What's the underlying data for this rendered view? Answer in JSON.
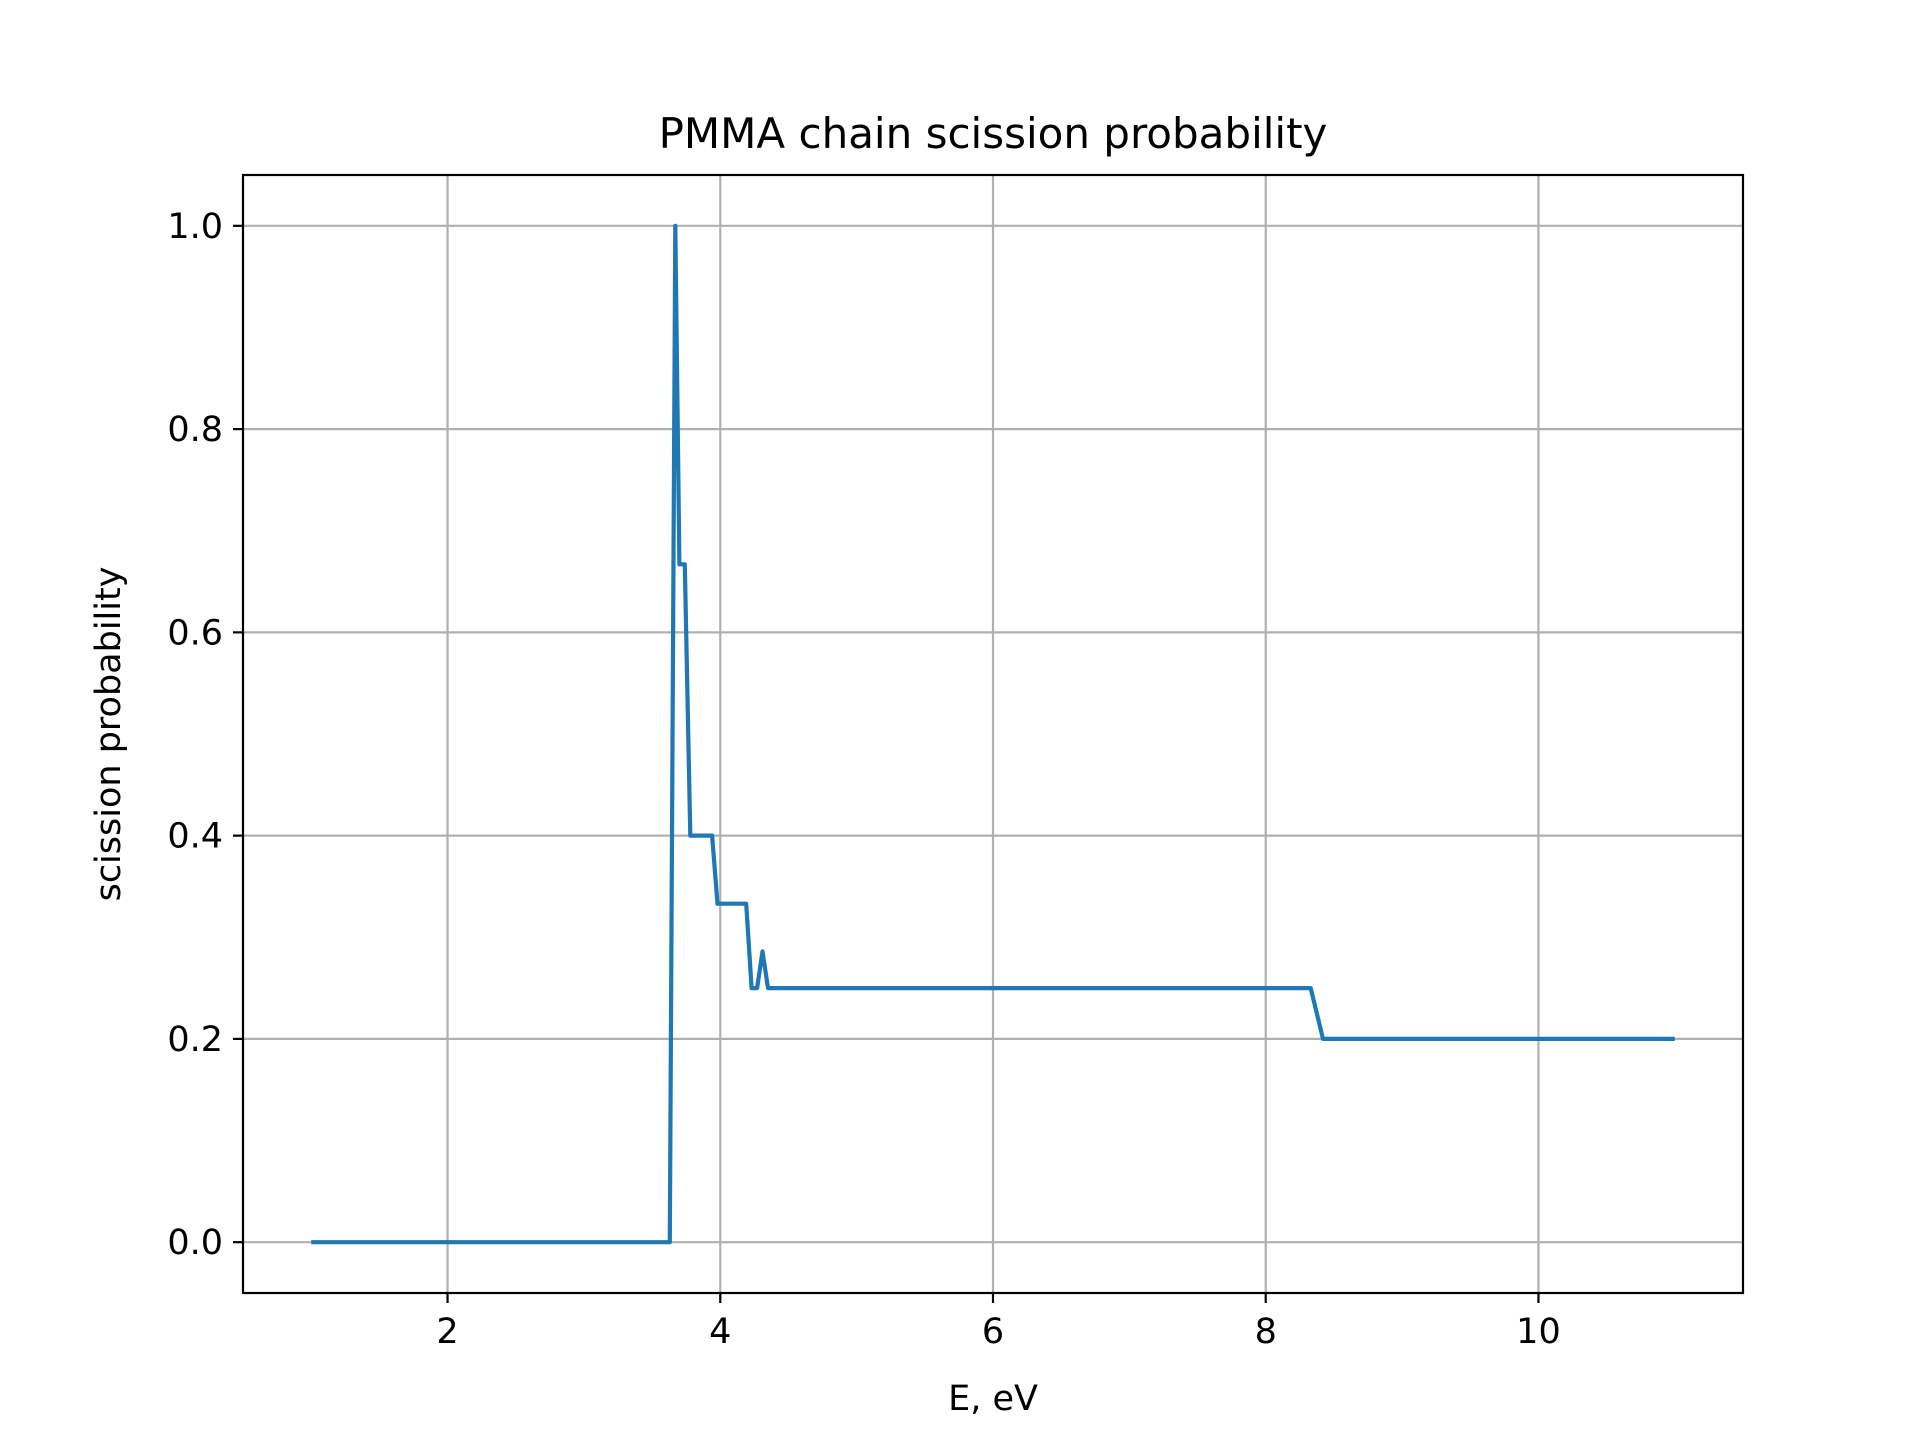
{
  "chart_data": {
    "type": "line",
    "title": "PMMA chain scission probability",
    "xlabel": "E, eV",
    "ylabel": "scission probability",
    "xlim": [
      0.5,
      11.5
    ],
    "ylim": [
      -0.05,
      1.05
    ],
    "xticks": [
      2,
      4,
      6,
      8,
      10
    ],
    "yticks": [
      0.0,
      0.2,
      0.4,
      0.6,
      0.8,
      1.0
    ],
    "xtick_labels": [
      "2",
      "4",
      "6",
      "8",
      "10"
    ],
    "ytick_labels": [
      "0.0",
      "0.2",
      "0.4",
      "0.6",
      "0.8",
      "1.0"
    ],
    "grid": true,
    "series": [
      {
        "color": "#1f77b4",
        "points": [
          [
            1.0,
            0.0
          ],
          [
            3.63,
            0.0
          ],
          [
            3.67,
            1.0
          ],
          [
            3.7,
            0.667
          ],
          [
            3.74,
            0.667
          ],
          [
            3.78,
            0.4
          ],
          [
            3.94,
            0.4
          ],
          [
            3.98,
            0.333
          ],
          [
            4.19,
            0.333
          ],
          [
            4.23,
            0.25
          ],
          [
            4.27,
            0.25
          ],
          [
            4.31,
            0.286
          ],
          [
            4.35,
            0.25
          ],
          [
            8.33,
            0.25
          ],
          [
            8.42,
            0.2
          ],
          [
            11.0,
            0.2
          ]
        ]
      }
    ]
  }
}
